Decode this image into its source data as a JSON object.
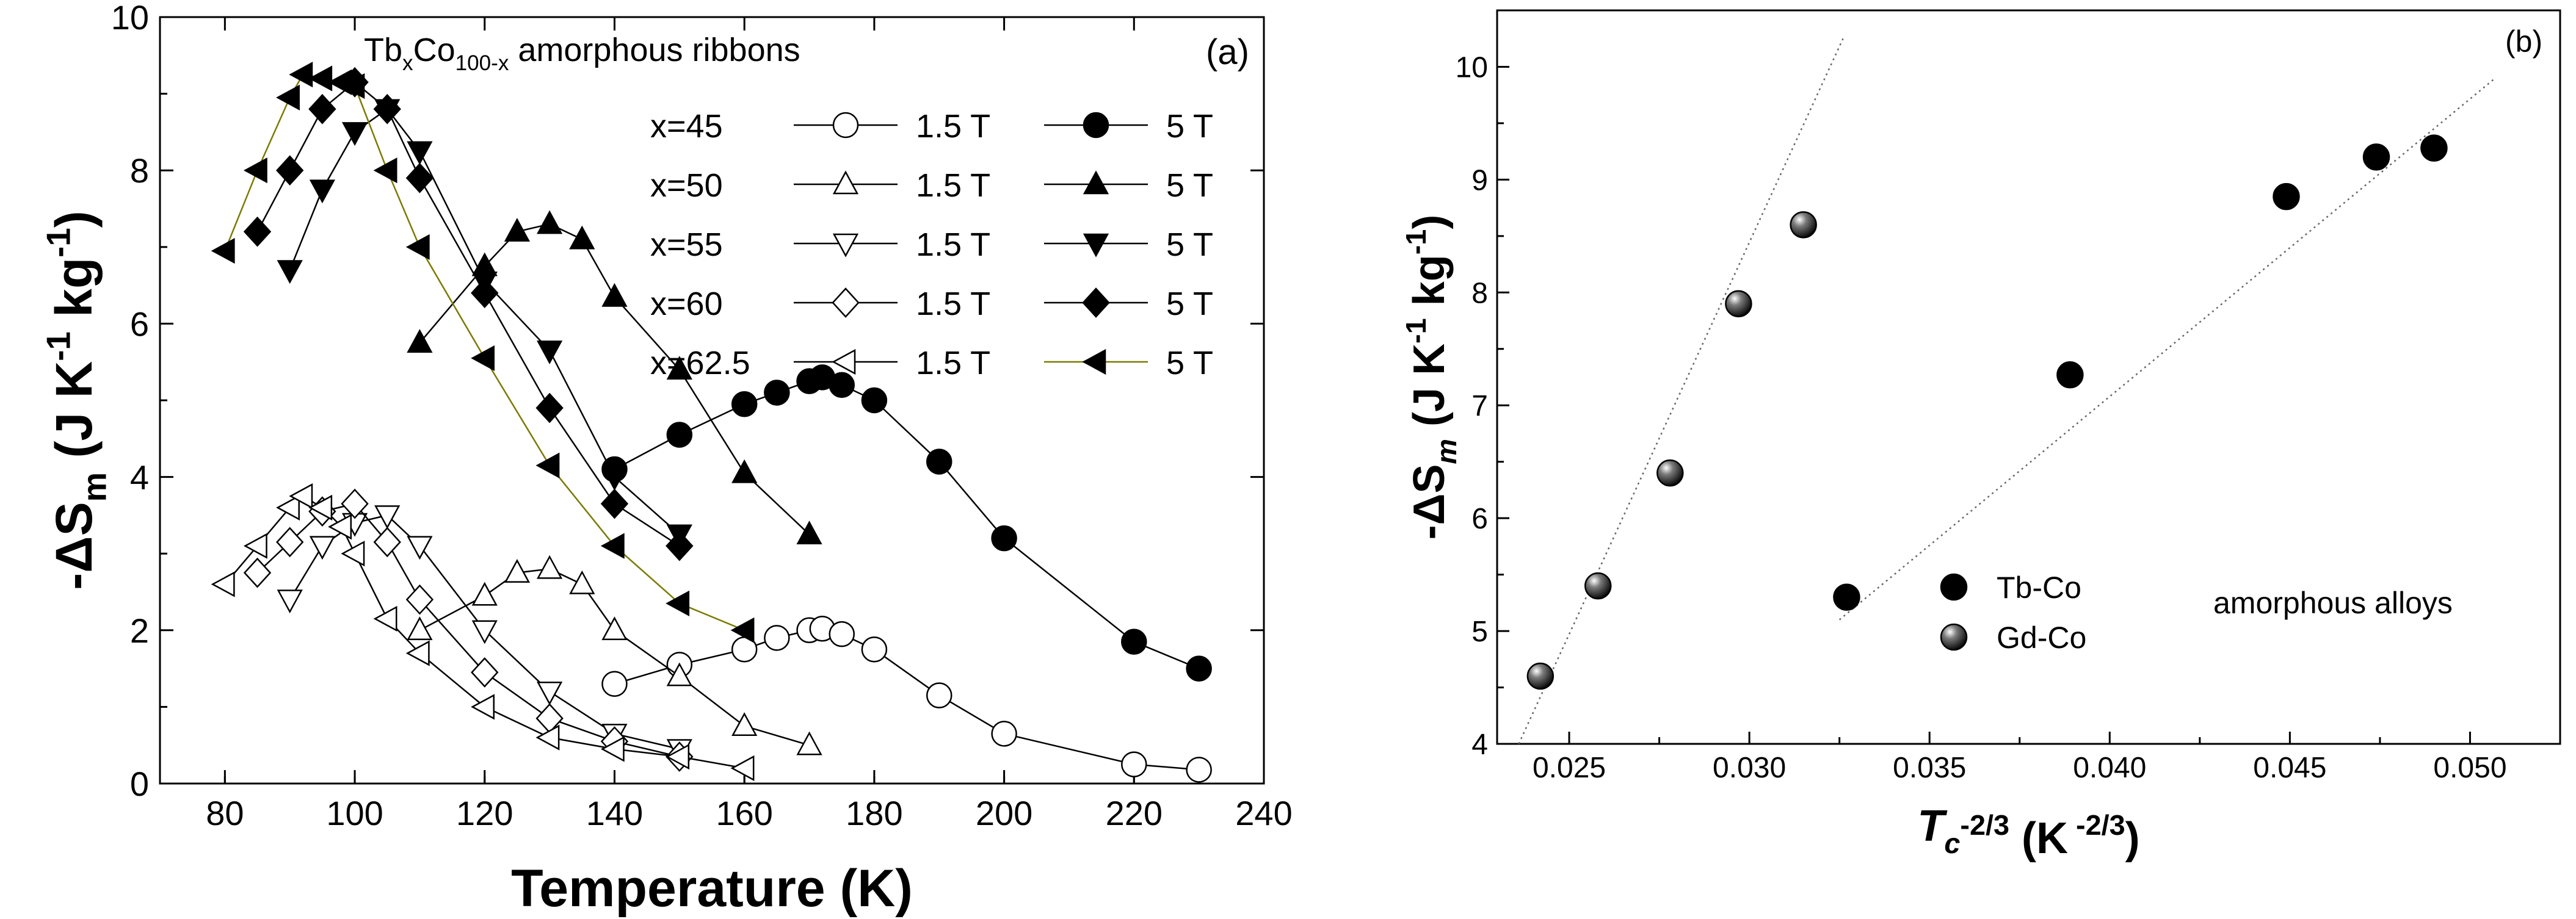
{
  "chart_data": [
    {
      "id": "a",
      "type": "line",
      "panel_label": "(a)",
      "title_parts": [
        "Tb",
        "x",
        "Co",
        "100-x",
        " amorphous ribbons"
      ],
      "xlabel": "Temperature (K)",
      "ylabel_parts": [
        "-ΔS",
        "m",
        " (J K",
        "-1",
        " kg",
        "-1",
        ")"
      ],
      "xlim": [
        70,
        240
      ],
      "ylim": [
        0,
        10
      ],
      "xticks": [
        80,
        100,
        120,
        140,
        160,
        180,
        200,
        220,
        240
      ],
      "yticks": [
        0,
        2,
        4,
        6,
        8,
        10
      ],
      "legend_rows": [
        {
          "x_label": "x=45",
          "low_label": "1.5 T",
          "high_label": "5 T"
        },
        {
          "x_label": "x=50",
          "low_label": "1.5 T",
          "high_label": "5 T"
        },
        {
          "x_label": "x=55",
          "low_label": "1.5 T",
          "high_label": "5 T"
        },
        {
          "x_label": "x=60",
          "low_label": "1.5 T",
          "high_label": "5 T"
        },
        {
          "x_label": "x=62.5",
          "low_label": "1.5 T",
          "high_label": "5 T"
        }
      ],
      "series": [
        {
          "name": "x=45 1.5 T",
          "marker": "circle",
          "filled": false,
          "line_color": "#000000",
          "x": [
            140,
            150,
            160,
            165,
            170,
            172,
            175,
            180,
            190,
            200,
            220,
            230
          ],
          "y": [
            1.3,
            1.55,
            1.75,
            1.9,
            2.0,
            2.02,
            1.95,
            1.75,
            1.15,
            0.65,
            0.25,
            0.18
          ]
        },
        {
          "name": "x=45 5 T",
          "marker": "circle",
          "filled": true,
          "line_color": "#000000",
          "x": [
            140,
            150,
            160,
            165,
            170,
            172,
            175,
            180,
            190,
            200,
            220,
            230
          ],
          "y": [
            4.1,
            4.55,
            4.95,
            5.1,
            5.25,
            5.3,
            5.2,
            5.0,
            4.2,
            3.2,
            1.85,
            1.5
          ]
        },
        {
          "name": "x=50 1.5 T",
          "marker": "triangle-up",
          "filled": false,
          "line_color": "#000000",
          "x": [
            110,
            120,
            125,
            130,
            135,
            140,
            150,
            160,
            170
          ],
          "y": [
            2.0,
            2.45,
            2.75,
            2.8,
            2.6,
            2.0,
            1.4,
            0.75,
            0.5
          ]
        },
        {
          "name": "x=50 5 T",
          "marker": "triangle-up",
          "filled": true,
          "line_color": "#000000",
          "x": [
            110,
            120,
            125,
            130,
            135,
            140,
            150,
            160,
            170
          ],
          "y": [
            5.75,
            6.75,
            7.2,
            7.3,
            7.1,
            6.35,
            5.4,
            4.05,
            3.25
          ]
        },
        {
          "name": "x=55 1.5 T",
          "marker": "triangle-down",
          "filled": false,
          "line_color": "#000000",
          "x": [
            90,
            95,
            100,
            105,
            110,
            120,
            130,
            140,
            150
          ],
          "y": [
            2.4,
            3.1,
            3.4,
            3.5,
            3.1,
            2.0,
            1.2,
            0.65,
            0.45
          ]
        },
        {
          "name": "x=55 5 T",
          "marker": "triangle-down",
          "filled": true,
          "line_color": "#000000",
          "x": [
            90,
            95,
            100,
            105,
            110,
            120,
            130,
            140,
            150
          ],
          "y": [
            6.7,
            7.75,
            8.5,
            8.8,
            8.25,
            6.55,
            5.65,
            4.0,
            3.25
          ]
        },
        {
          "name": "x=60 1.5 T",
          "marker": "diamond",
          "filled": false,
          "line_color": "#000000",
          "x": [
            85,
            90,
            95,
            100,
            105,
            110,
            120,
            130,
            140,
            150
          ],
          "y": [
            2.75,
            3.15,
            3.55,
            3.65,
            3.15,
            2.4,
            1.45,
            0.85,
            0.55,
            0.35
          ]
        },
        {
          "name": "x=60 5 T",
          "marker": "diamond",
          "filled": true,
          "line_color": "#000000",
          "x": [
            85,
            90,
            95,
            100,
            105,
            110,
            120,
            130,
            140,
            150
          ],
          "y": [
            7.2,
            8.0,
            8.8,
            9.15,
            8.8,
            7.9,
            6.4,
            4.9,
            3.65,
            3.1
          ]
        },
        {
          "name": "x=62.5 1.5 T",
          "marker": "triangle-left",
          "filled": false,
          "line_color": "#000000",
          "x": [
            80,
            85,
            90,
            92,
            95,
            98,
            100,
            105,
            110,
            120,
            130,
            140,
            150,
            160
          ],
          "y": [
            2.6,
            3.1,
            3.6,
            3.75,
            3.6,
            3.35,
            3.0,
            2.15,
            1.7,
            1.0,
            0.6,
            0.45,
            0.35,
            0.2
          ]
        },
        {
          "name": "x=62.5 5 T",
          "marker": "triangle-left",
          "filled": true,
          "line_color": "#7a7a00",
          "x": [
            80,
            85,
            90,
            92,
            95,
            98,
            100,
            105,
            110,
            120,
            130,
            140,
            150,
            160
          ],
          "y": [
            6.95,
            8.0,
            8.95,
            9.25,
            9.2,
            9.15,
            9.1,
            8.0,
            7.0,
            5.55,
            4.15,
            3.1,
            2.35,
            2.0
          ]
        }
      ]
    },
    {
      "id": "b",
      "type": "scatter",
      "panel_label": "(b)",
      "xlabel_parts": [
        "T",
        "c",
        "-2/3",
        " (K",
        " -2/3",
        ")"
      ],
      "ylabel_parts": [
        "-ΔS",
        "m",
        " (J K",
        "-1",
        " kg",
        "-1",
        ")"
      ],
      "xlim": [
        0.023,
        0.0525
      ],
      "ylim": [
        4,
        10.5
      ],
      "xticks": [
        0.025,
        0.03,
        0.035,
        0.04,
        0.045,
        0.05
      ],
      "xtick_labels": [
        "0.025",
        "0.030",
        "0.035",
        "0.040",
        "0.045",
        "0.050"
      ],
      "yticks": [
        4,
        5,
        6,
        7,
        8,
        9,
        10
      ],
      "annotation": "amorphous alloys",
      "series": [
        {
          "name": "Tb-Co",
          "marker": "circle",
          "filled": true,
          "x": [
            0.0327,
            0.0389,
            0.0449,
            0.0474,
            0.049
          ],
          "y": [
            5.3,
            7.27,
            8.85,
            9.2,
            9.28
          ],
          "fit_line": {
            "x": [
              0.0325,
              0.0507
            ],
            "y": [
              5.1,
              9.9
            ]
          }
        },
        {
          "name": "Gd-Co",
          "marker": "sphere",
          "filled": true,
          "x": [
            0.0242,
            0.0258,
            0.0278,
            0.0297,
            0.0315
          ],
          "y": [
            4.6,
            5.4,
            6.4,
            7.9,
            8.6
          ],
          "fit_line": {
            "x": [
              0.0236,
              0.0326
            ],
            "y": [
              4.0,
              10.25
            ]
          }
        }
      ]
    }
  ]
}
